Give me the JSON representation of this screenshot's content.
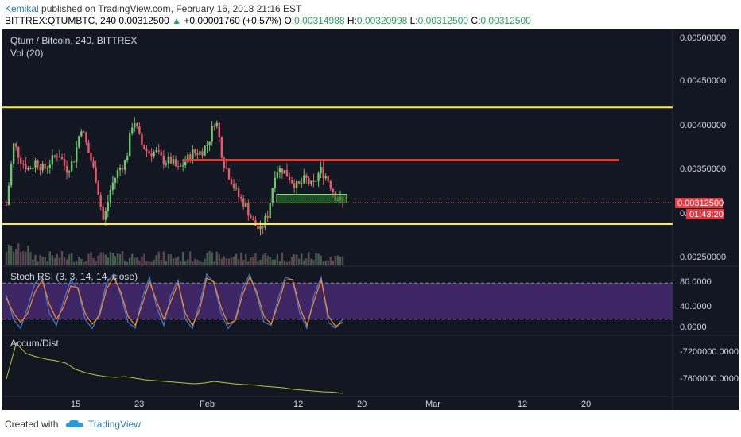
{
  "header": {
    "author": "Kemikal",
    "published_text": " published on TradingView.com, February 16, 2018 21:16 EST",
    "symbol": "BITTREX:QTUMBTC, 240",
    "last": "0.00312500",
    "change": "+0.00001760 (+0.57%)",
    "o_label": "O:",
    "o": "0.00314988",
    "h_label": "H:",
    "h": "0.00320998",
    "l_label": "L:",
    "l": "0.00312500",
    "c_label": "C:",
    "c": "0.00312500"
  },
  "footer": {
    "created": "Created with",
    "brand": "TradingView"
  },
  "colors": {
    "bg": "#131722",
    "up": "#6ec66e",
    "down": "#e8596b",
    "yellow": "#ffeb3b",
    "red": "#e53935",
    "rsi_fill": "#3d2663",
    "k_line": "#3f7fe0",
    "d_line": "#ff8a1e",
    "accum": "#bcc43a"
  },
  "chart_data": [
    {
      "type": "candlestick",
      "title": "Qtum / Bitcoin, 240, BITTREX",
      "subtitle": "Vol (20)",
      "ylim": [
        0.0024,
        0.0051
      ],
      "y_ticks": [
        "0.00500000",
        "0.00450000",
        "0.00400000",
        "0.00350000",
        "0.00250000"
      ],
      "x_ticks": [
        "15",
        "23",
        "Feb",
        "12",
        "20",
        "Mar",
        "12",
        "20"
      ],
      "last_price_label": "0.00312500",
      "countdown_label": "01:43:20",
      "partial_tick_label": "0.",
      "close_series": [
        0.0031,
        0.0038,
        0.0036,
        0.0035,
        0.0036,
        0.0035,
        0.0036,
        0.0037,
        0.0035,
        0.0036,
        0.004,
        0.0037,
        0.0034,
        0.0029,
        0.0033,
        0.0035,
        0.0036,
        0.0041,
        0.0038,
        0.0037,
        0.0037,
        0.0036,
        0.0036,
        0.0035,
        0.0036,
        0.0037,
        0.0037,
        0.0038,
        0.0041,
        0.0036,
        0.0034,
        0.0032,
        0.0031,
        0.0029,
        0.0028,
        0.003,
        0.0035,
        0.0035,
        0.0034,
        0.0033,
        0.0034,
        0.0033,
        0.0035,
        0.0034,
        0.0032,
        0.00312
      ],
      "horizontal_lines": [
        {
          "color": "yellow",
          "value": 0.00421
        },
        {
          "color": "yellow",
          "value": 0.00288
        },
        {
          "color": "red",
          "value": 0.00361,
          "x_start": 0.27,
          "x_end": 0.92
        }
      ],
      "highlight_zone": {
        "low": 0.00312,
        "high": 0.00322
      }
    },
    {
      "type": "line",
      "title": "Stoch RSI (3, 3, 14, 14, close)",
      "ylim": [
        0,
        100
      ],
      "y_ticks": [
        "80.0000",
        "40.0000",
        "0.0000"
      ],
      "band": [
        20,
        80
      ],
      "k_series": [
        60,
        20,
        5,
        40,
        80,
        90,
        30,
        10,
        50,
        85,
        70,
        20,
        5,
        30,
        80,
        95,
        60,
        15,
        5,
        55,
        90,
        40,
        10,
        60,
        85,
        20,
        5,
        45,
        95,
        80,
        30,
        5,
        20,
        70,
        95,
        60,
        15,
        10,
        55,
        90,
        85,
        30,
        5,
        60,
        90,
        15,
        5,
        20
      ],
      "d_series": [
        55,
        30,
        15,
        30,
        65,
        85,
        45,
        20,
        40,
        75,
        72,
        30,
        12,
        25,
        70,
        90,
        65,
        25,
        10,
        45,
        82,
        50,
        20,
        50,
        80,
        30,
        10,
        35,
        88,
        82,
        40,
        12,
        18,
        60,
        90,
        65,
        25,
        12,
        45,
        85,
        86,
        40,
        10,
        50,
        85,
        25,
        8,
        15
      ]
    },
    {
      "type": "line",
      "title": "Accum/Dist",
      "y_ticks": [
        "-7200000.0000",
        "-7600000.0000"
      ],
      "ylim": [
        -7700000,
        -7000000
      ],
      "series": [
        -7500000,
        -7050000,
        -7180000,
        -7220000,
        -7250000,
        -7270000,
        -7300000,
        -7380000,
        -7420000,
        -7450000,
        -7470000,
        -7480000,
        -7470000,
        -7490000,
        -7510000,
        -7520000,
        -7530000,
        -7540000,
        -7550000,
        -7560000,
        -7550000,
        -7530000,
        -7545000,
        -7560000,
        -7570000,
        -7575000,
        -7590000,
        -7600000,
        -7610000,
        -7630000,
        -7640000,
        -7650000,
        -7660000,
        -7665000,
        -7680000
      ]
    }
  ]
}
